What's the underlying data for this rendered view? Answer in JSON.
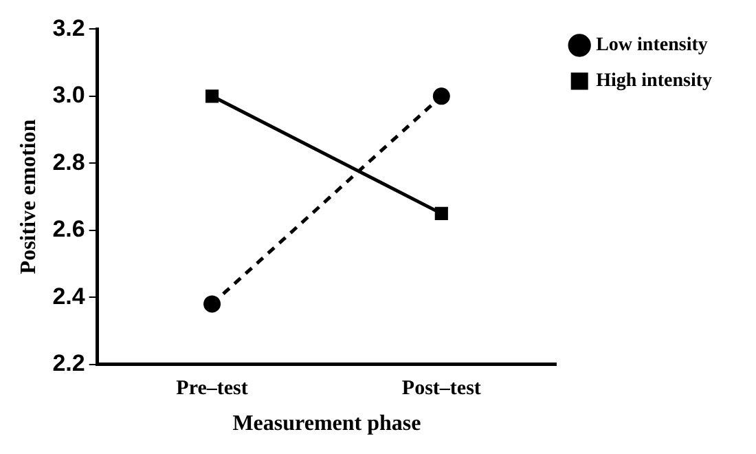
{
  "chart_data": {
    "type": "line",
    "xlabel": "Measurement phase",
    "ylabel": "Positive emotion",
    "categories": [
      "Pre–test",
      "Post–test"
    ],
    "series": [
      {
        "name": "Low intensity",
        "color": "#000000",
        "values": [
          2.38,
          3.0
        ],
        "marker": "circle",
        "line_style": "dashed"
      },
      {
        "name": "High intensity",
        "color": "#000000",
        "values": [
          3.0,
          2.65
        ],
        "marker": "square",
        "line_style": "solid"
      }
    ],
    "ylim": [
      2.2,
      3.2
    ],
    "yticks": [
      {
        "value": 2.2,
        "label": "2.2"
      },
      {
        "value": 2.4,
        "label": "2.4"
      },
      {
        "value": 2.6,
        "label": "2.6"
      },
      {
        "value": 2.8,
        "label": "2.8"
      },
      {
        "value": 3.0,
        "label": "3.0"
      },
      {
        "value": 3.2,
        "label": "3.2"
      }
    ],
    "grid": false,
    "legend": "top right"
  }
}
